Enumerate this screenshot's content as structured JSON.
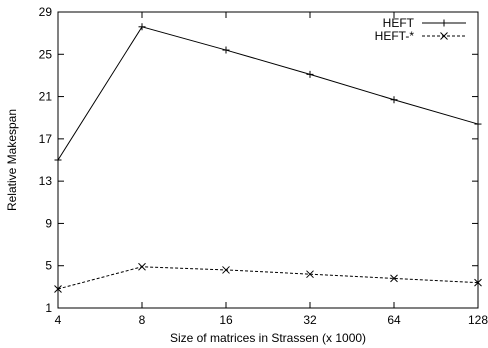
{
  "chart_data": {
    "type": "line",
    "title": "",
    "xlabel": "Size of matrices in Strassen (x 1000)",
    "ylabel": "Relative Makespan",
    "x_scale": "log2",
    "categories": [
      "4",
      "8",
      "16",
      "32",
      "64",
      "128"
    ],
    "x": [
      4,
      8,
      16,
      32,
      64,
      128
    ],
    "ylim": [
      1,
      29
    ],
    "yticks": [
      1,
      5,
      9,
      13,
      17,
      21,
      25,
      29
    ],
    "grid": false,
    "legend_position": "top-right",
    "series": [
      {
        "name": "HEFT",
        "line": "solid",
        "marker": "plus",
        "color": "#000000",
        "values": [
          15.0,
          27.6,
          25.4,
          23.1,
          20.7,
          18.4
        ]
      },
      {
        "name": "HEFT-*",
        "line": "dashed",
        "marker": "cross",
        "color": "#000000",
        "values": [
          2.8,
          4.9,
          4.6,
          4.2,
          3.8,
          3.4
        ]
      }
    ]
  }
}
